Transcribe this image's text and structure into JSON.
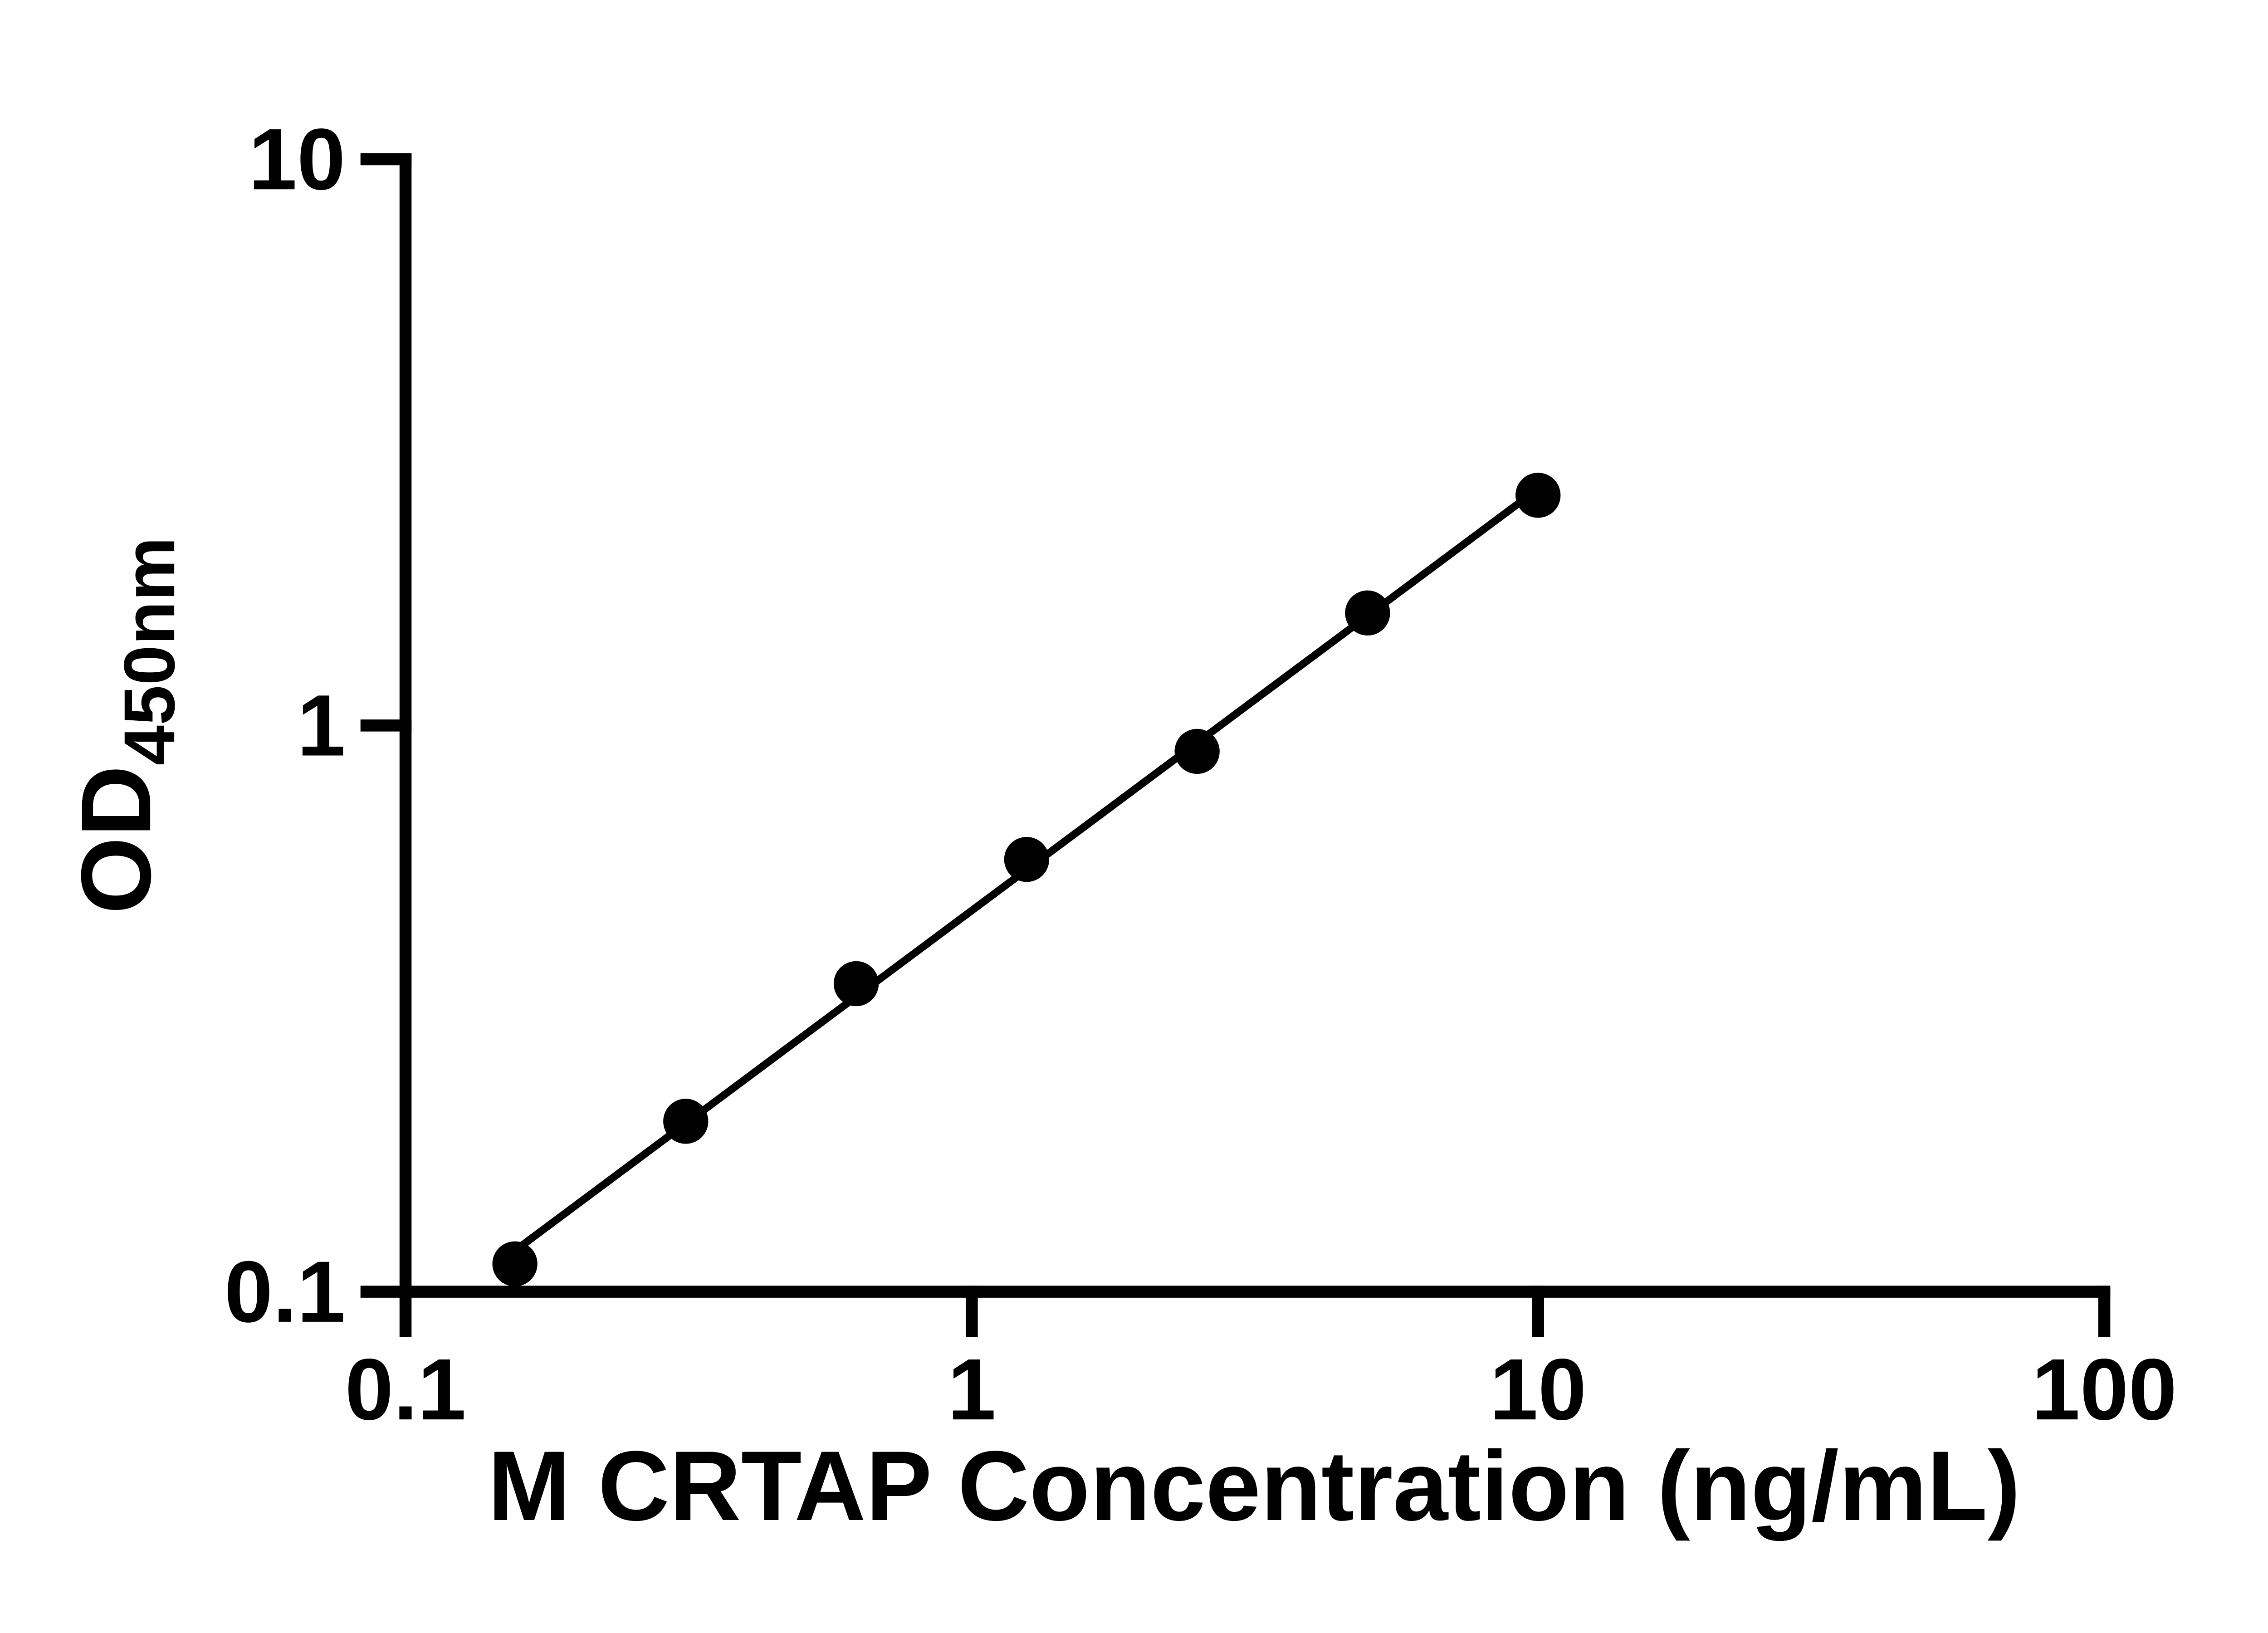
{
  "chart_data": {
    "type": "scatter",
    "title": "",
    "xlabel": "M CRTAP Concentration (ng/mL)",
    "ylabel": "OD",
    "ylabel_subscript": "450nm",
    "x_scale": "log",
    "y_scale": "log",
    "xlim": [
      0.1,
      100
    ],
    "ylim": [
      0.1,
      10
    ],
    "grid": false,
    "legend": "none",
    "x": [
      0.156,
      0.3125,
      0.625,
      1.25,
      2.5,
      5,
      10
    ],
    "y": [
      0.112,
      0.2,
      0.35,
      0.58,
      0.9,
      1.58,
      2.55
    ],
    "trend_line": true,
    "x_ticks": [
      {
        "value": 0.1,
        "label": "0.1"
      },
      {
        "value": 1,
        "label": "1"
      },
      {
        "value": 10,
        "label": "10"
      },
      {
        "value": 100,
        "label": "100"
      }
    ],
    "y_ticks": [
      {
        "value": 0.1,
        "label": "0.1"
      },
      {
        "value": 1,
        "label": "1"
      },
      {
        "value": 10,
        "label": "10"
      }
    ],
    "marker_color": "#000000",
    "line_color": "#000000",
    "axis_color": "#000000",
    "background": "#ffffff"
  }
}
